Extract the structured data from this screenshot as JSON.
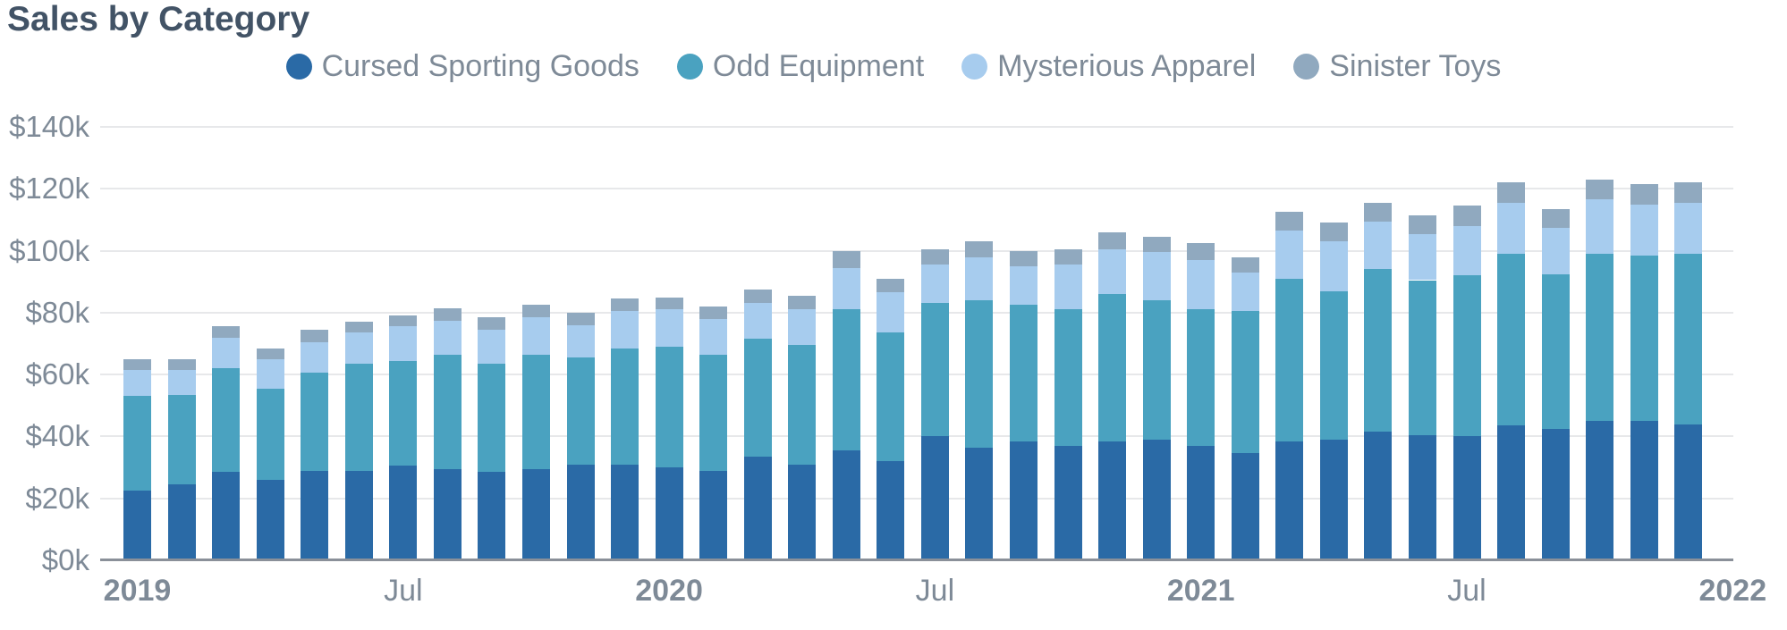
{
  "title": "Sales by Category",
  "colors": {
    "background": "#ffffff",
    "title_text": "#425366",
    "axis_text": "#7e8a97",
    "gridline": "#e7e8ea",
    "axis_line": "#8a9099"
  },
  "legend": [
    {
      "label": "Cursed Sporting Goods",
      "color": "#2a6aa6"
    },
    {
      "label": "Odd Equipment",
      "color": "#4aa2c0"
    },
    {
      "label": "Mysterious Apparel",
      "color": "#a7ccee"
    },
    {
      "label": "Sinister Toys",
      "color": "#90a9bf"
    }
  ],
  "chart_data": {
    "type": "bar",
    "stacked": true,
    "title": "Sales by Category",
    "xlabel": "",
    "ylabel": "",
    "unit": "USD thousands",
    "ylim": [
      0,
      140
    ],
    "grid": true,
    "legend_position": "top",
    "categories": [
      "Jan 2019",
      "Feb 2019",
      "Mar 2019",
      "Apr 2019",
      "May 2019",
      "Jun 2019",
      "Jul 2019",
      "Aug 2019",
      "Sep 2019",
      "Oct 2019",
      "Nov 2019",
      "Dec 2019",
      "Jan 2020",
      "Feb 2020",
      "Mar 2020",
      "Apr 2020",
      "May 2020",
      "Jun 2020",
      "Jul 2020",
      "Aug 2020",
      "Sep 2020",
      "Oct 2020",
      "Nov 2020",
      "Dec 2020",
      "Jan 2021",
      "Feb 2021",
      "Mar 2021",
      "Apr 2021",
      "May 2021",
      "Jun 2021",
      "Jul 2021",
      "Aug 2021",
      "Sep 2021",
      "Oct 2021",
      "Nov 2021",
      "Dec 2021"
    ],
    "series": [
      {
        "name": "Cursed Sporting Goods",
        "color": "#2a6aa6",
        "values": [
          22.5,
          24.5,
          28.5,
          26,
          29,
          29,
          30.5,
          29.5,
          28.5,
          29.5,
          31,
          31,
          30,
          29,
          33.5,
          31,
          35.5,
          32,
          40,
          36.5,
          38.5,
          37,
          38.5,
          39,
          37,
          34.5,
          38.5,
          39,
          41.5,
          40.5,
          40,
          43.5,
          42.5,
          45,
          45,
          44
        ]
      },
      {
        "name": "Odd Equipment",
        "color": "#4aa2c0",
        "values": [
          30.5,
          29,
          33.5,
          29.5,
          31.5,
          34.5,
          34,
          37,
          35,
          37,
          34.5,
          37.5,
          39,
          37.5,
          38,
          38.5,
          45.5,
          41.5,
          43,
          47.5,
          44,
          44,
          47.5,
          45,
          44,
          46,
          52.5,
          48,
          52.5,
          50,
          52,
          55.5,
          50,
          54,
          53.5,
          55
        ]
      },
      {
        "name": "Mysterious Apparel",
        "color": "#a7ccee",
        "values": [
          8.5,
          8,
          10,
          9.5,
          10,
          10,
          11,
          11,
          11,
          12,
          10.5,
          12,
          12,
          11.5,
          11.5,
          11.5,
          13.5,
          13,
          12.5,
          14,
          12.5,
          14.5,
          14.5,
          15.5,
          16,
          12.5,
          15.5,
          16,
          15.5,
          15,
          16,
          16.5,
          15,
          17.5,
          16.5,
          16.5
        ]
      },
      {
        "name": "Sinister Toys",
        "color": "#90a9bf",
        "values": [
          3.5,
          3.5,
          3.5,
          3.5,
          4,
          3.5,
          3.5,
          4,
          4,
          4,
          4,
          4,
          4,
          4,
          4.5,
          4.5,
          5.5,
          4.5,
          5,
          5,
          5,
          5,
          5.5,
          5,
          5.5,
          5,
          6,
          6,
          6,
          6,
          6.5,
          6.5,
          6,
          6.5,
          6.5,
          6.5
        ]
      }
    ],
    "y_ticks": [
      {
        "value": 0,
        "label": "$0k"
      },
      {
        "value": 20,
        "label": "$20k"
      },
      {
        "value": 40,
        "label": "$40k"
      },
      {
        "value": 60,
        "label": "$60k"
      },
      {
        "value": 80,
        "label": "$80k"
      },
      {
        "value": 100,
        "label": "$100k"
      },
      {
        "value": 120,
        "label": "$120k"
      },
      {
        "value": 140,
        "label": "$140k"
      }
    ],
    "x_ticks": [
      {
        "bar_index": 0,
        "label": "2019",
        "bold": true
      },
      {
        "bar_index": 6,
        "label": "Jul",
        "bold": false
      },
      {
        "bar_index": 12,
        "label": "2020",
        "bold": true
      },
      {
        "bar_index": 18,
        "label": "Jul",
        "bold": false
      },
      {
        "bar_index": 24,
        "label": "2021",
        "bold": true
      },
      {
        "bar_index": 30,
        "label": "Jul",
        "bold": false
      },
      {
        "bar_index": 36,
        "label": "2022",
        "bold": true
      }
    ]
  }
}
